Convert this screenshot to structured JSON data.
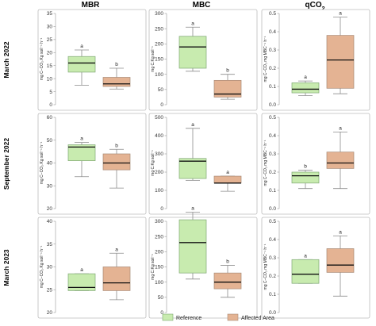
{
  "colors": {
    "reference_fill": "#c8ebaf",
    "reference_stroke": "#7fa874",
    "affected_fill": "#e4b393",
    "affected_stroke": "#a98a76",
    "whisker": "#8c8c8c",
    "median": "#111111",
    "panel_border": "#bdbdbd"
  },
  "columns": [
    {
      "key": "mbr",
      "title": "MBR",
      "sub": ""
    },
    {
      "key": "mbc",
      "title": "MBC",
      "sub": ""
    },
    {
      "key": "qco2",
      "title": "qCO",
      "sub": "2"
    }
  ],
  "rows": [
    {
      "key": "mar22",
      "title": "March 2022"
    },
    {
      "key": "sep22",
      "title": "September 2022"
    },
    {
      "key": "mar23",
      "title": "March 2023"
    }
  ],
  "legend": [
    {
      "label": "Reference",
      "group": "reference"
    },
    {
      "label": "Affected Area",
      "group": "affected"
    }
  ],
  "chart_data": [
    {
      "type": "box",
      "row": "March 2022",
      "column": "MBR",
      "ylabel": "mg C−CO₂.Kg soil⁻¹ h⁻¹",
      "ylim": [
        0,
        35
      ],
      "yticks": [
        0,
        5,
        10,
        15,
        20,
        25,
        30,
        35
      ],
      "series": [
        {
          "name": "Reference",
          "min": 7.5,
          "q1": 12.5,
          "median": 16,
          "q3": 18.5,
          "max": 21,
          "letter": "a"
        },
        {
          "name": "Affected Area",
          "min": 6,
          "q1": 7,
          "median": 8,
          "q3": 10.5,
          "max": 14,
          "letter": "b"
        }
      ]
    },
    {
      "type": "box",
      "row": "March 2022",
      "column": "MBC",
      "ylabel": "mg C.Kg soil⁻¹",
      "ylim": [
        0,
        300
      ],
      "yticks": [
        0,
        50,
        100,
        150,
        200,
        250,
        300
      ],
      "series": [
        {
          "name": "Reference",
          "min": 110,
          "q1": 120,
          "median": 190,
          "q3": 225,
          "max": 255,
          "letter": "a"
        },
        {
          "name": "Affected Area",
          "min": 18,
          "q1": 25,
          "median": 35,
          "q3": 80,
          "max": 100,
          "letter": "b"
        }
      ]
    },
    {
      "type": "box",
      "row": "March 2022",
      "column": "qCO2",
      "ylabel": "mg C−CO₂.mg MBC⁻¹ h⁻¹",
      "ylim": [
        0,
        0.5
      ],
      "yticks": [
        0,
        0.1,
        0.2,
        0.3,
        0.4,
        0.5
      ],
      "series": [
        {
          "name": "Reference",
          "min": 0.05,
          "q1": 0.065,
          "median": 0.085,
          "q3": 0.12,
          "max": 0.13,
          "letter": "a"
        },
        {
          "name": "Affected Area",
          "min": 0.06,
          "q1": 0.09,
          "median": 0.245,
          "q3": 0.38,
          "max": 0.48,
          "letter": "a"
        }
      ]
    },
    {
      "type": "box",
      "row": "September 2022",
      "column": "MBR",
      "ylabel": "mg C−CO₂.Kg soil⁻¹ h⁻¹",
      "ylim": [
        20,
        60
      ],
      "yticks": [
        20,
        30,
        40,
        50,
        60
      ],
      "series": [
        {
          "name": "Reference",
          "min": 34,
          "q1": 41,
          "median": 47,
          "q3": 48,
          "max": 49,
          "letter": "a"
        },
        {
          "name": "Affected Area",
          "min": 29,
          "q1": 37,
          "median": 40,
          "q3": 44,
          "max": 46,
          "letter": "b"
        }
      ]
    },
    {
      "type": "box",
      "row": "September 2022",
      "column": "MBC",
      "ylabel": "mg C.Kg soil⁻¹",
      "ylim": [
        0,
        500
      ],
      "yticks": [
        0,
        100,
        200,
        300,
        400,
        500
      ],
      "series": [
        {
          "name": "Reference",
          "min": 155,
          "q1": 165,
          "median": 260,
          "q3": 275,
          "max": 440,
          "letter": "a"
        },
        {
          "name": "Affected Area",
          "min": 95,
          "q1": 140,
          "median": 140,
          "q3": 178,
          "max": 178,
          "letter": "a"
        }
      ]
    },
    {
      "type": "box",
      "row": "September 2022",
      "column": "qCO2",
      "ylabel": "mg C−CO₂.mg MBC⁻¹ h⁻¹",
      "ylim": [
        0,
        0.5
      ],
      "yticks": [
        0,
        0.1,
        0.2,
        0.3,
        0.4,
        0.5
      ],
      "series": [
        {
          "name": "Reference",
          "min": 0.11,
          "q1": 0.14,
          "median": 0.18,
          "q3": 0.2,
          "max": 0.21,
          "letter": "b"
        },
        {
          "name": "Affected Area",
          "min": 0.11,
          "q1": 0.22,
          "median": 0.25,
          "q3": 0.31,
          "max": 0.42,
          "letter": "a"
        }
      ]
    },
    {
      "type": "box",
      "row": "March 2023",
      "column": "MBR",
      "ylabel": "mg C−CO₂.Kg soil⁻¹ h⁻¹",
      "ylim": [
        20,
        40
      ],
      "yticks": [
        20,
        25,
        30,
        35,
        40
      ],
      "series": [
        {
          "name": "Reference",
          "min": 24.8,
          "q1": 24.8,
          "median": 25.5,
          "q3": 28.5,
          "max": 28.5,
          "letter": "a"
        },
        {
          "name": "Affected Area",
          "min": 22.8,
          "q1": 24.8,
          "median": 26.5,
          "q3": 30,
          "max": 33,
          "letter": "a"
        }
      ]
    },
    {
      "type": "box",
      "row": "March 2023",
      "column": "MBC",
      "ylabel": "mg C.Kg soil⁻¹",
      "ylim": [
        0,
        300
      ],
      "yticks": [
        0,
        50,
        100,
        150,
        200,
        250,
        300
      ],
      "series": [
        {
          "name": "Reference",
          "min": 110,
          "q1": 130,
          "median": 230,
          "q3": 305,
          "max": 330,
          "letter": "a"
        },
        {
          "name": "Affected Area",
          "min": 50,
          "q1": 78,
          "median": 100,
          "q3": 130,
          "max": 155,
          "letter": "b"
        }
      ]
    },
    {
      "type": "box",
      "row": "March 2023",
      "column": "qCO2",
      "ylabel": "mg C−CO₂.mg MBC⁻¹ h⁻¹",
      "ylim": [
        0,
        0.5
      ],
      "yticks": [
        0,
        0.1,
        0.2,
        0.3,
        0.4,
        0.5
      ],
      "series": [
        {
          "name": "Reference",
          "min": 0.16,
          "q1": 0.16,
          "median": 0.21,
          "q3": 0.29,
          "max": 0.29,
          "letter": "a"
        },
        {
          "name": "Affected Area",
          "min": 0.09,
          "q1": 0.22,
          "median": 0.26,
          "q3": 0.35,
          "max": 0.42,
          "letter": "a"
        }
      ]
    }
  ]
}
